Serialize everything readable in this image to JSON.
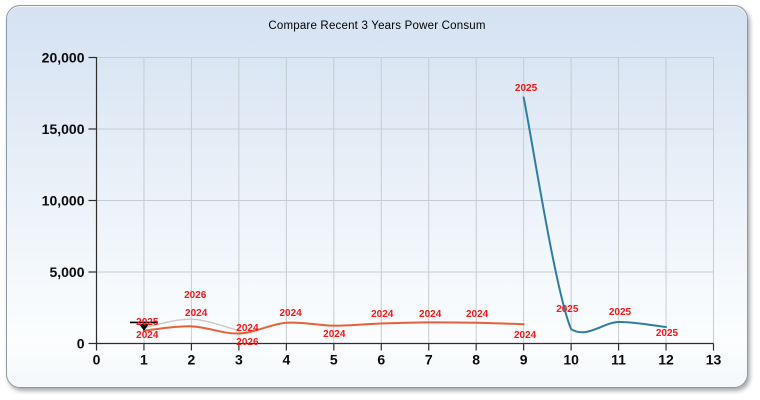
{
  "panel": {
    "title": "Compare Recent 3 Years Power Consum",
    "border_color": "#8f989f",
    "background_top": "#d5e2f2",
    "background_bottom": "#f5f8fb"
  },
  "chart_data": {
    "type": "line",
    "title": "Compare Recent 3 Years Power Consum",
    "xlabel": "",
    "ylabel": "",
    "xlim": [
      0,
      13
    ],
    "ylim": [
      0,
      20000
    ],
    "grid": true,
    "grid_color": "#c7ccd2",
    "axis_color": "#2e2e2e",
    "tick_text_color": "#0a0a0a",
    "point_label_color": "#fa1414",
    "x_ticks": [
      0,
      1,
      2,
      3,
      4,
      5,
      6,
      7,
      8,
      9,
      10,
      11,
      12,
      13
    ],
    "y_ticks": [
      {
        "value": 0,
        "label": "0"
      },
      {
        "value": 5000,
        "label": "5,000"
      },
      {
        "value": 10000,
        "label": "10,000"
      },
      {
        "value": 15000,
        "label": "15,000"
      },
      {
        "value": 20000,
        "label": "20,000"
      }
    ],
    "series": [
      {
        "name": "2026",
        "color": "#c8c8c8",
        "width": 1.4,
        "points": [
          [
            1,
            1100
          ],
          [
            2,
            1700
          ],
          [
            3,
            900
          ]
        ]
      },
      {
        "name": "2024",
        "color": "#e5613c",
        "width": 2,
        "points": [
          [
            1,
            900
          ],
          [
            2,
            1200
          ],
          [
            3,
            700
          ],
          [
            4,
            1450
          ],
          [
            5,
            1250
          ],
          [
            6,
            1400
          ],
          [
            7,
            1480
          ],
          [
            8,
            1450
          ],
          [
            9,
            1350
          ]
        ]
      },
      {
        "name": "2025",
        "color": "#2f7da1",
        "width": 2,
        "points": [
          [
            9,
            17200
          ],
          [
            10,
            1000
          ],
          [
            11,
            1500
          ],
          [
            12,
            1150
          ]
        ]
      }
    ],
    "point_labels": [
      {
        "text": "2025",
        "x": 1.07,
        "y": 1545
      },
      {
        "text": "2024",
        "x": 1.07,
        "y": 630
      },
      {
        "text": "2026",
        "x": 2.08,
        "y": 3440
      },
      {
        "text": "2024",
        "x": 2.1,
        "y": 2175
      },
      {
        "text": "2024",
        "x": 3.18,
        "y": 1120
      },
      {
        "text": "2026",
        "x": 3.18,
        "y": 140
      },
      {
        "text": "2024",
        "x": 4.09,
        "y": 2175
      },
      {
        "text": "2024",
        "x": 5.01,
        "y": 700
      },
      {
        "text": "2024",
        "x": 6.02,
        "y": 2105
      },
      {
        "text": "2024",
        "x": 7.03,
        "y": 2105
      },
      {
        "text": "2024",
        "x": 8.02,
        "y": 2105
      },
      {
        "text": "2025",
        "x": 9.05,
        "y": 17895
      },
      {
        "text": "2024",
        "x": 9.03,
        "y": 630
      },
      {
        "text": "2025",
        "x": 9.92,
        "y": 2455
      },
      {
        "text": "2025",
        "x": 11.03,
        "y": 2245
      },
      {
        "text": "2025",
        "x": 12.02,
        "y": 770
      }
    ],
    "selected_marker": {
      "x": 1,
      "value": 950,
      "color": "#000000"
    }
  }
}
